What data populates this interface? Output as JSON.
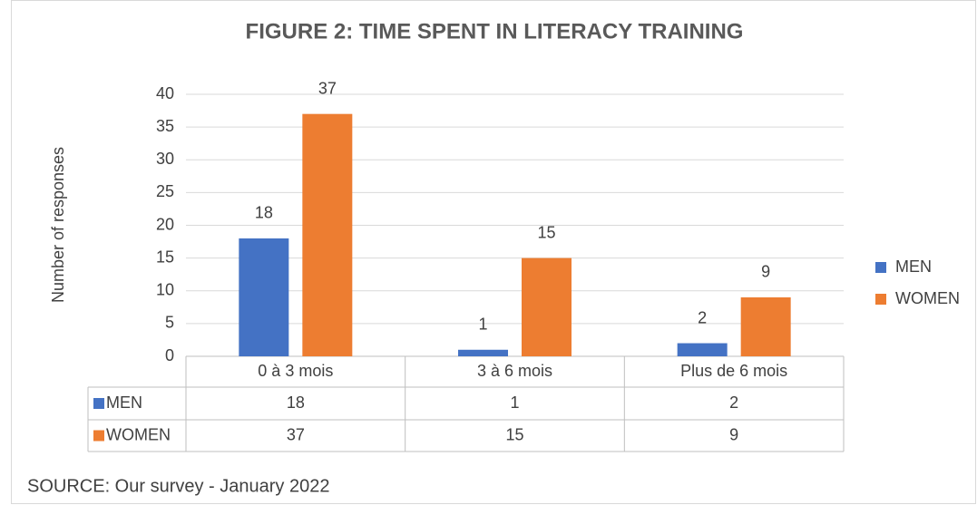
{
  "chart_data": {
    "type": "bar",
    "title": "FIGURE 2: TIME SPENT IN LITERACY TRAINING",
    "y_label": "Number of responses",
    "categories": [
      "0 à 3 mois",
      "3 à 6 mois",
      "Plus de 6 mois"
    ],
    "series": [
      {
        "name": "MEN",
        "color": "#4472c4",
        "values": [
          18,
          1,
          2
        ]
      },
      {
        "name": "WOMEN",
        "color": "#ed7d31",
        "values": [
          37,
          15,
          9
        ]
      }
    ],
    "ylim": [
      0,
      40
    ],
    "yticks": [
      0,
      5,
      10,
      15,
      20,
      25,
      30,
      35,
      40
    ],
    "grid": true,
    "legend": "right",
    "source": "SOURCE: Our survey - January 2022"
  }
}
